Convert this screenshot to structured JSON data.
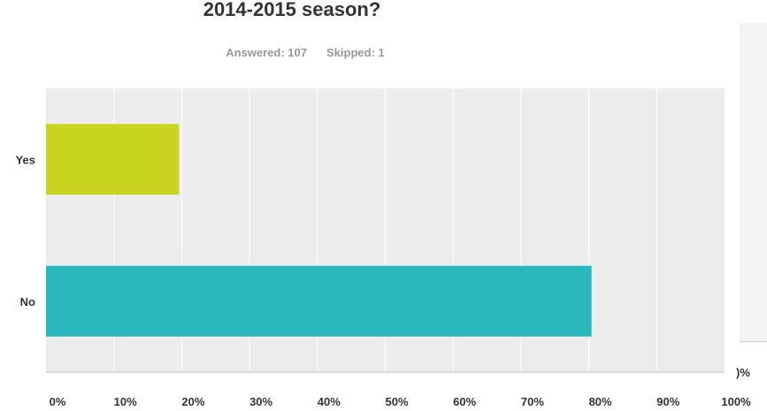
{
  "title": "2014-2015 season?",
  "stats": {
    "answered": "Answered: 107",
    "skipped": "Skipped: 1"
  },
  "side_panel": {
    "tick_fragment": ")%"
  },
  "chart_data": {
    "type": "bar",
    "orientation": "horizontal",
    "categories": [
      "Yes",
      "No"
    ],
    "values": [
      19.6,
      80.4
    ],
    "unit": "%",
    "xlim": [
      0,
      100
    ],
    "xticks": [
      "0%",
      "10%",
      "20%",
      "30%",
      "40%",
      "50%",
      "60%",
      "70%",
      "80%",
      "90%",
      "100%"
    ],
    "grid": true,
    "colors": [
      "#c9d420",
      "#29b9bc"
    ],
    "plot_background": "#ececec"
  }
}
